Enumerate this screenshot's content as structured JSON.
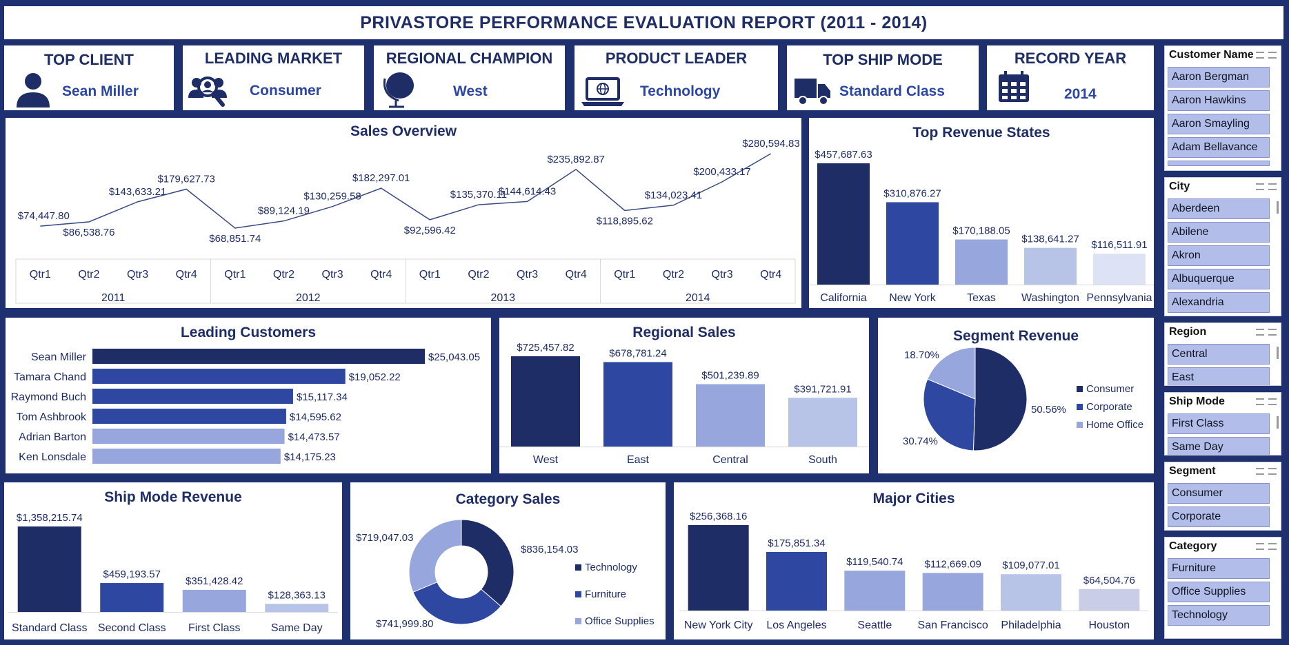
{
  "report_title": "PRIVASTORE PERFORMANCE EVALUATION REPORT (2011 - 2014)",
  "kpis": {
    "top_client": {
      "title": "TOP CLIENT",
      "value": "Sean Miller",
      "icon": "person-icon"
    },
    "leading_market": {
      "title": "LEADING MARKET",
      "value": "Consumer",
      "icon": "people-search-icon"
    },
    "regional_champion": {
      "title": "REGIONAL CHAMPION",
      "value": "West",
      "icon": "globe-icon"
    },
    "product_leader": {
      "title": "PRODUCT LEADER",
      "value": "Technology",
      "icon": "laptop-icon"
    },
    "top_ship_mode": {
      "title": "TOP SHIP MODE",
      "value": "Standard Class",
      "icon": "truck-icon"
    },
    "record_year": {
      "title": "RECORD YEAR",
      "value": "2014",
      "icon": "calendar-icon"
    }
  },
  "colors": {
    "navy": "#1f2d66",
    "blue": "#2e47a0",
    "light_blue": "#97a6dc",
    "pale_blue": "#b8c3e8",
    "lightest": "#dde3f4"
  },
  "sales_overview": {
    "title": "Sales Overview",
    "chart_data": {
      "type": "line",
      "quarters": [
        "Qtr1",
        "Qtr2",
        "Qtr3",
        "Qtr4"
      ],
      "years": [
        "2011",
        "2012",
        "2013",
        "2014"
      ],
      "values": [
        74447.8,
        86538.76,
        143633.21,
        179627.73,
        68851.74,
        89124.19,
        130259.58,
        182297.01,
        92596.42,
        135370.11,
        144614.43,
        235892.87,
        118895.62,
        134023.41,
        200433.17,
        280594.83
      ],
      "labels": [
        "$74,447.80",
        "$86,538.76",
        "$143,633.21",
        "$179,627.73",
        "$68,851.74",
        "$89,124.19",
        "$130,259.58",
        "$182,297.01",
        "$92,596.42",
        "$135,370.11",
        "$144,614.43",
        "$235,892.87",
        "$118,895.62",
        "$134,023.41",
        "$200,433.17",
        "$280,594.83"
      ]
    }
  },
  "top_states": {
    "title": "Top Revenue States",
    "chart_data": {
      "type": "bar",
      "categories": [
        "California",
        "New York",
        "Texas",
        "Washington",
        "Pennsylvania"
      ],
      "values": [
        457687.63,
        310876.27,
        170188.05,
        138641.27,
        116511.91
      ],
      "labels": [
        "$457,687.63",
        "$310,876.27",
        "$170,188.05",
        "$138,641.27",
        "$116,511.91"
      ],
      "colors": [
        "#1f2d66",
        "#2e47a0",
        "#97a6dc",
        "#b8c3e8",
        "#dde3f4"
      ]
    }
  },
  "leading_customers": {
    "title": "Leading Customers",
    "chart_data": {
      "type": "bar",
      "categories": [
        "Sean Miller",
        "Tamara Chand",
        "Raymond Buch",
        "Tom Ashbrook",
        "Adrian Barton",
        "Ken Lonsdale"
      ],
      "values": [
        25043.05,
        19052.22,
        15117.34,
        14595.62,
        14473.57,
        14175.23
      ],
      "labels": [
        "$25,043.05",
        "$19,052.22",
        "$15,117.34",
        "$14,595.62",
        "$14,473.57",
        "$14,175.23"
      ],
      "colors": [
        "#1f2d66",
        "#2e47a0",
        "#2e47a0",
        "#2e47a0",
        "#97a6dc",
        "#97a6dc"
      ]
    }
  },
  "regional_sales": {
    "title": "Regional Sales",
    "chart_data": {
      "type": "bar",
      "categories": [
        "West",
        "East",
        "Central",
        "South"
      ],
      "values": [
        725457.82,
        678781.24,
        501239.89,
        391721.91
      ],
      "labels": [
        "$725,457.82",
        "$678,781.24",
        "$501,239.89",
        "$391,721.91"
      ],
      "colors": [
        "#1f2d66",
        "#2e47a0",
        "#97a6dc",
        "#b8c3e8"
      ]
    }
  },
  "segment_revenue": {
    "title": "Segment Revenue",
    "chart_data": {
      "type": "pie",
      "categories": [
        "Consumer",
        "Corporate",
        "Home Office"
      ],
      "values": [
        50.56,
        30.74,
        18.7
      ],
      "labels": [
        "50.56%",
        "30.74%",
        "18.70%"
      ],
      "colors": [
        "#1f2d66",
        "#2e47a0",
        "#97a6dc"
      ],
      "legend": "right"
    }
  },
  "ship_mode_revenue": {
    "title": "Ship Mode Revenue",
    "chart_data": {
      "type": "bar",
      "categories": [
        "Standard Class",
        "Second Class",
        "First Class",
        "Same Day"
      ],
      "values": [
        1358215.74,
        459193.57,
        351428.42,
        128363.13
      ],
      "labels": [
        "$1,358,215.74",
        "$459,193.57",
        "$351,428.42",
        "$128,363.13"
      ],
      "colors": [
        "#1f2d66",
        "#2e47a0",
        "#97a6dc",
        "#b8c3e8"
      ]
    }
  },
  "category_sales": {
    "title": "Category Sales",
    "chart_data": {
      "type": "pie",
      "categories": [
        "Technology",
        "Furniture",
        "Office Supplies"
      ],
      "values": [
        836154.03,
        741999.8,
        719047.03
      ],
      "labels": [
        "$836,154.03",
        "$741,999.80",
        "$719,047.03"
      ],
      "colors": [
        "#1f2d66",
        "#2e47a0",
        "#97a6dc"
      ],
      "legend": "right"
    }
  },
  "major_cities": {
    "title": "Major Cities",
    "chart_data": {
      "type": "bar",
      "categories": [
        "New York City",
        "Los Angeles",
        "Seattle",
        "San Francisco",
        "Philadelphia",
        "Houston"
      ],
      "values": [
        256368.16,
        175851.34,
        119540.74,
        112669.09,
        109077.01,
        64504.76
      ],
      "labels": [
        "$256,368.16",
        "$175,851.34",
        "$119,540.74",
        "$112,669.09",
        "$109,077.01",
        "$64,504.76"
      ],
      "colors": [
        "#1f2d66",
        "#2e47a0",
        "#97a6dc",
        "#97a6dc",
        "#b8c3e8",
        "#c9cde6"
      ]
    }
  },
  "slicers": [
    {
      "title": "Customer Name",
      "items": [
        "Aaron Bergman",
        "Aaron Hawkins",
        "Aaron Smayling",
        "Adam Bellavance"
      ]
    },
    {
      "title": "City",
      "items": [
        "Aberdeen",
        "Abilene",
        "Akron",
        "Albuquerque",
        "Alexandria"
      ]
    },
    {
      "title": "Region",
      "items": [
        "Central",
        "East"
      ]
    },
    {
      "title": "Ship Mode",
      "items": [
        "First Class",
        "Same Day"
      ]
    },
    {
      "title": "Segment",
      "items": [
        "Consumer",
        "Corporate"
      ]
    },
    {
      "title": "Category",
      "items": [
        "Furniture",
        "Office Supplies",
        "Technology"
      ]
    }
  ]
}
